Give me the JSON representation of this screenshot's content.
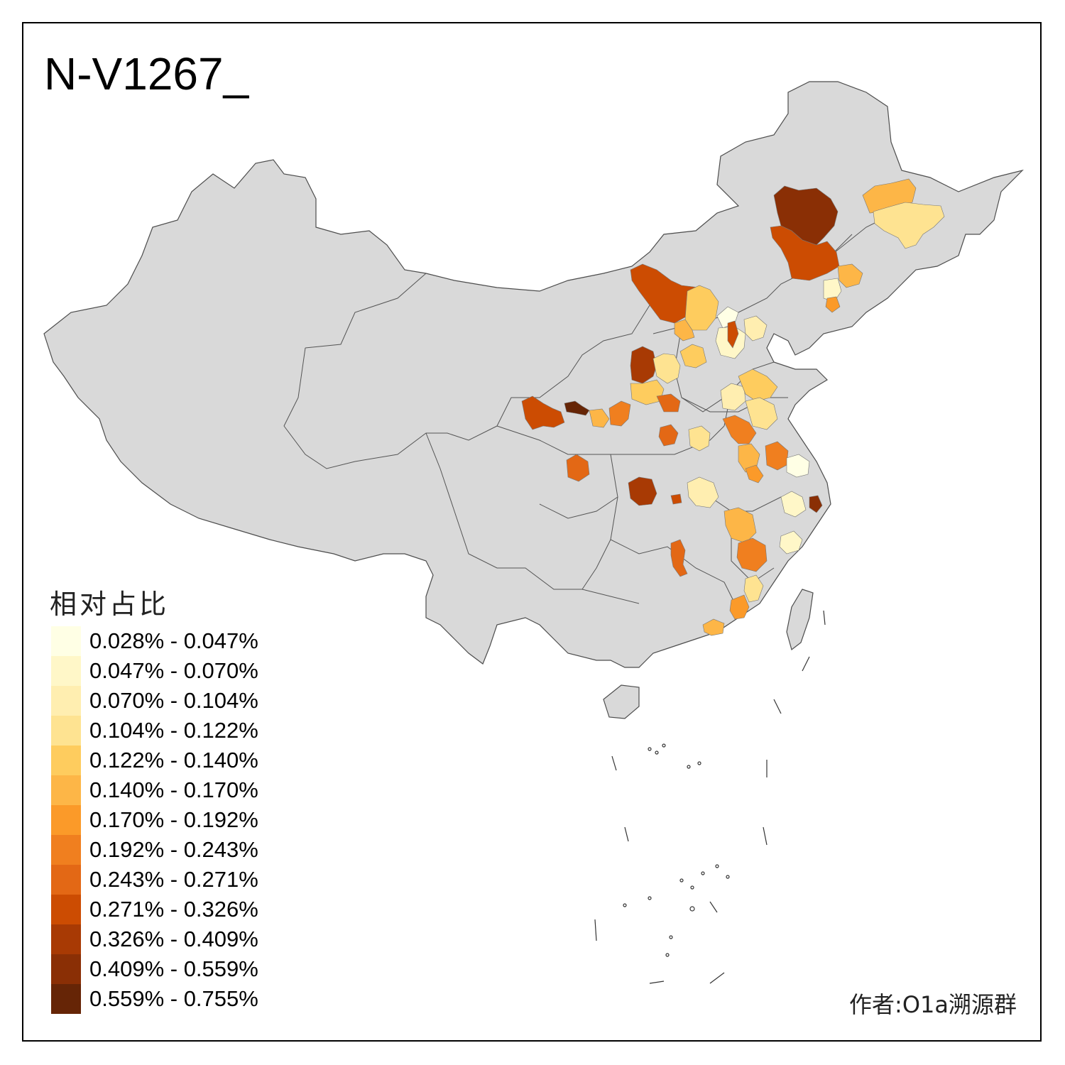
{
  "title": "N-V1267_",
  "author": "作者:O1a溯源群",
  "legend": {
    "title": "相对占比",
    "items": [
      {
        "label": "0.028% - 0.047%",
        "color": "#ffffe5"
      },
      {
        "label": "0.047% - 0.070%",
        "color": "#fff7c8"
      },
      {
        "label": "0.070% - 0.104%",
        "color": "#ffeeb0"
      },
      {
        "label": "0.104% - 0.122%",
        "color": "#fee391"
      },
      {
        "label": "0.122% - 0.140%",
        "color": "#fecc5e"
      },
      {
        "label": "0.140% - 0.170%",
        "color": "#fdb647"
      },
      {
        "label": "0.170% - 0.192%",
        "color": "#fb9a29"
      },
      {
        "label": "0.192% - 0.243%",
        "color": "#f07f1f"
      },
      {
        "label": "0.243% - 0.271%",
        "color": "#e36815"
      },
      {
        "label": "0.271% - 0.326%",
        "color": "#cc4c02"
      },
      {
        "label": "0.326% - 0.409%",
        "color": "#a83a04"
      },
      {
        "label": "0.409% - 0.559%",
        "color": "#8a2f05"
      },
      {
        "label": "0.559% - 0.755%",
        "color": "#662506"
      }
    ]
  },
  "map": {
    "base_fill": "#d9d9d9",
    "border_color": "#4d4d4d",
    "regions": [
      {
        "name": "hulunbuir-heilongjiang-west",
        "class": 11
      },
      {
        "name": "inner-mongolia-east",
        "class": 9
      },
      {
        "name": "liaoning-west",
        "class": 5
      },
      {
        "name": "liaoning-center",
        "class": 1
      },
      {
        "name": "liaoning-south",
        "class": 6
      },
      {
        "name": "jilin",
        "class": 5
      },
      {
        "name": "heilongjiang-east",
        "class": 3
      },
      {
        "name": "inner-mongolia-center",
        "class": 9
      },
      {
        "name": "hebei-north",
        "class": 4
      },
      {
        "name": "hebei-northwest",
        "class": 5
      },
      {
        "name": "beijing",
        "class": 0
      },
      {
        "name": "hebei-center",
        "class": 1
      },
      {
        "name": "hebei-red",
        "class": 9
      },
      {
        "name": "tianjin",
        "class": 2
      },
      {
        "name": "shanxi-north",
        "class": 4
      },
      {
        "name": "ordos",
        "class": 10
      },
      {
        "name": "shaanxi-north",
        "class": 3
      },
      {
        "name": "shaanxi-center",
        "class": 4
      },
      {
        "name": "shanxi-south",
        "class": 8
      },
      {
        "name": "gansu-red",
        "class": 9
      },
      {
        "name": "gansu-dark",
        "class": 12
      },
      {
        "name": "gansu-yellow",
        "class": 5
      },
      {
        "name": "shaanxi-orange",
        "class": 7
      },
      {
        "name": "henan-orange",
        "class": 8
      },
      {
        "name": "henan-yellow",
        "class": 3
      },
      {
        "name": "shandong-west",
        "class": 2
      },
      {
        "name": "shandong-center",
        "class": 4
      },
      {
        "name": "shandong-east",
        "class": 3
      },
      {
        "name": "shandong-south",
        "class": 7
      },
      {
        "name": "jiangsu-north",
        "class": 5
      },
      {
        "name": "anhui-orange",
        "class": 6
      },
      {
        "name": "jiangsu-center",
        "class": 7
      },
      {
        "name": "shanghai-area",
        "class": 0
      },
      {
        "name": "zhejiang-north",
        "class": 1
      },
      {
        "name": "zhejiang-dark",
        "class": 11
      },
      {
        "name": "chongqing",
        "class": 8
      },
      {
        "name": "hubei-red",
        "class": 10
      },
      {
        "name": "hubei-small",
        "class": 9
      },
      {
        "name": "hubei-yellow",
        "class": 2
      },
      {
        "name": "jiangxi-yellow",
        "class": 5
      },
      {
        "name": "zhejiang-south",
        "class": 1
      },
      {
        "name": "hunan-orange",
        "class": 8
      },
      {
        "name": "fujian-orange",
        "class": 7
      },
      {
        "name": "fujian-yellow",
        "class": 3
      },
      {
        "name": "guangdong-east",
        "class": 6
      },
      {
        "name": "guangdong-small",
        "class": 5
      }
    ]
  }
}
